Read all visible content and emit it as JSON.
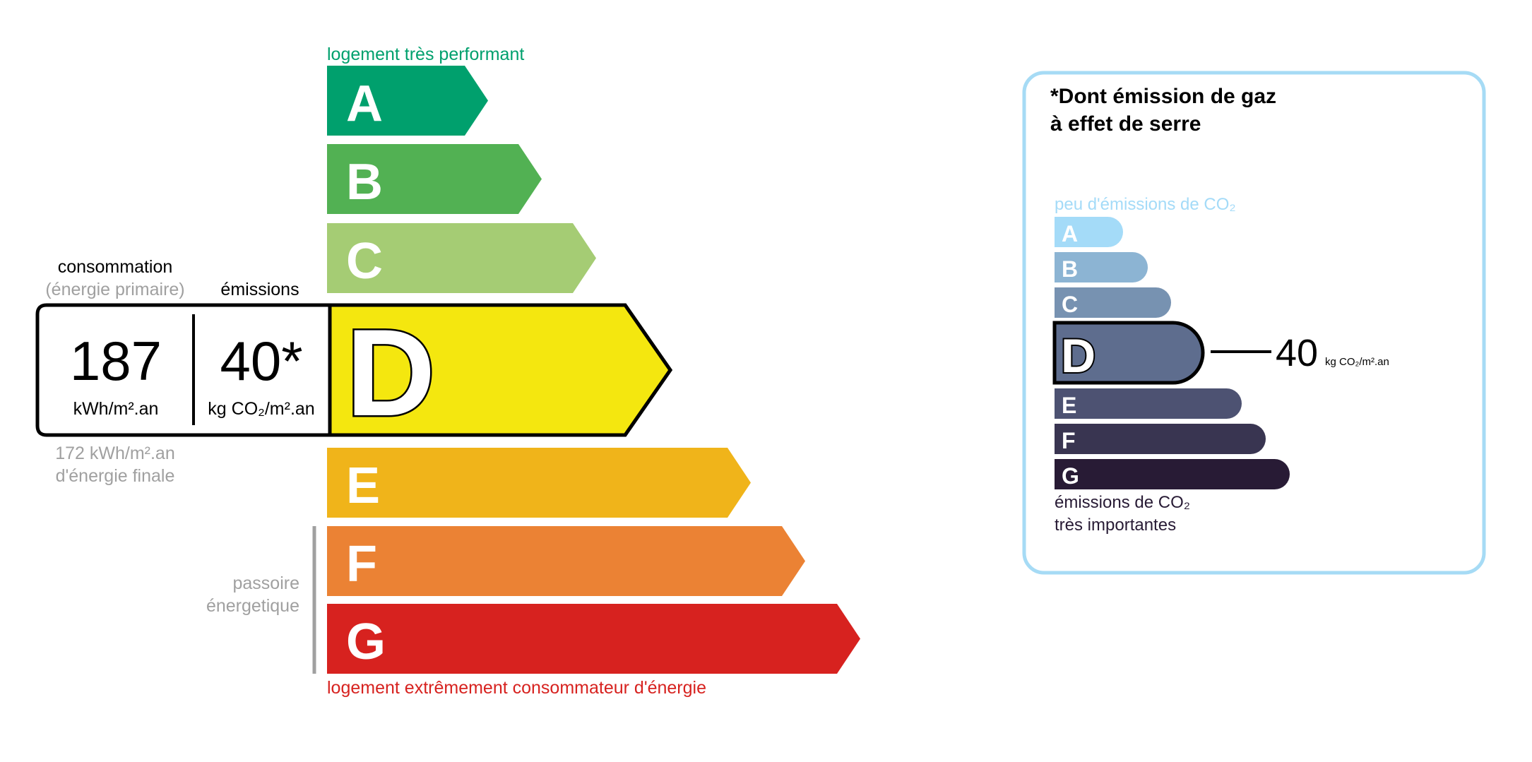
{
  "energy": {
    "top_label": "logement très performant",
    "bottom_label": "logement extrêmement consommateur d'énergie",
    "passoire_line1": "passoire",
    "passoire_line2": "énergetique",
    "classes": [
      {
        "letter": "A",
        "color": "#00a06d"
      },
      {
        "letter": "B",
        "color": "#52b153"
      },
      {
        "letter": "C",
        "color": "#a5cc74"
      },
      {
        "letter": "D",
        "color": "#f4e70f"
      },
      {
        "letter": "E",
        "color": "#f0b41a"
      },
      {
        "letter": "F",
        "color": "#eb8234"
      },
      {
        "letter": "G",
        "color": "#d7221f"
      }
    ],
    "current_class": "D",
    "consumption_label": "consommation",
    "primary_label": "(énergie primaire)",
    "emissions_label": "émissions",
    "consumption_value": "187",
    "consumption_unit": "kWh/m².an",
    "emissions_value": "40*",
    "emissions_unit": "kg CO₂/m².an",
    "final_value": "172 kWh/m².an",
    "final_label": "d'énergie finale",
    "top_color": "#00a06d",
    "bottom_color": "#d7221f"
  },
  "ges": {
    "title_line1": "*Dont émission de gaz",
    "title_line2": "à effet de serre",
    "top_label": "peu d'émissions de CO₂",
    "bottom_line1": "émissions de CO₂",
    "bottom_line2": "très importantes",
    "classes": [
      {
        "letter": "A",
        "color": "#a4dbf8"
      },
      {
        "letter": "B",
        "color": "#8cb4d3"
      },
      {
        "letter": "C",
        "color": "#7792b1"
      },
      {
        "letter": "D",
        "color": "#5e6d8e"
      },
      {
        "letter": "E",
        "color": "#4d5272"
      },
      {
        "letter": "F",
        "color": "#393551"
      },
      {
        "letter": "G",
        "color": "#281b35"
      }
    ],
    "current_class": "D",
    "value": "40",
    "unit": "kg CO₂/m².an",
    "border_color": "#a6dbf5"
  }
}
